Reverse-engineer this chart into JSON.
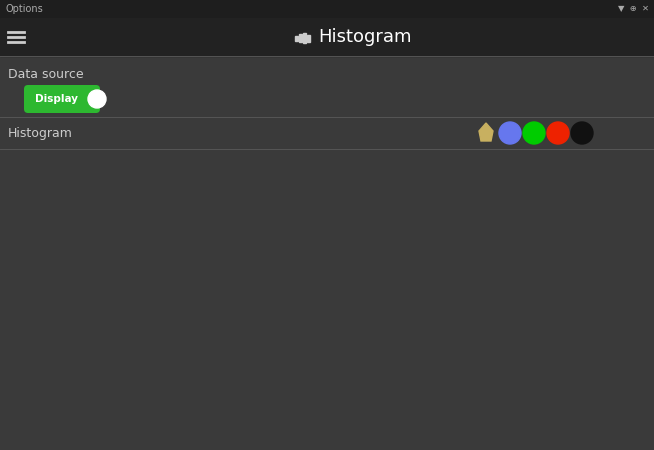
{
  "bg_color": "#3a3a3a",
  "title_bar_bg": "#1e1e1e",
  "header_bar_bg": "#222222",
  "plot_bg": "#3a3a3a",
  "title": "Histogram",
  "title_color": "#ffffff",
  "data_source_label": "Data source",
  "histogram_label": "Histogram",
  "label_color": "#cccccc",
  "toggle_bg": "#2db830",
  "toggle_label": "Display",
  "red_color": "#ff1a1a",
  "green_color": "#00bb00",
  "blue_color": "#5566ee",
  "circle_colors": [
    "#6677ee",
    "#00cc00",
    "#ee2200",
    "#111111"
  ],
  "icon_color": "#c8b060",
  "separator_color": "#555555",
  "axis_color": "#888888",
  "options_text": "Options"
}
